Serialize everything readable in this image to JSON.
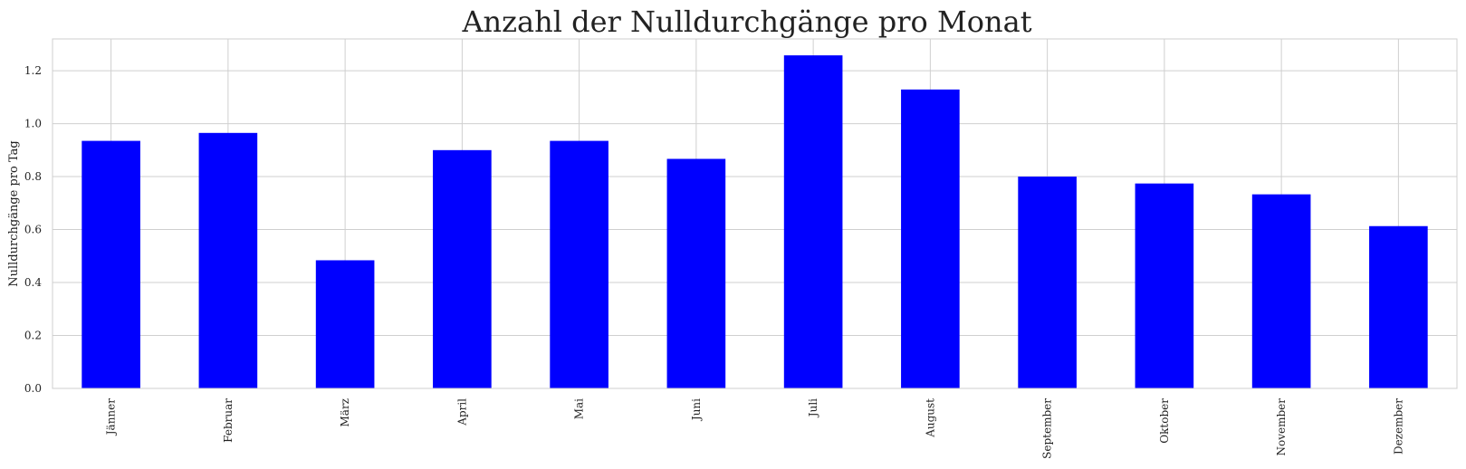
{
  "chart_data": {
    "type": "bar",
    "title": "Anzahl der Nulldurchgänge pro Monat",
    "xlabel": "",
    "ylabel": "Nulldurchgänge pro Tag",
    "categories": [
      "Jänner",
      "Februar",
      "März",
      "April",
      "Mai",
      "Juni",
      "Juli",
      "August",
      "September",
      "Oktober",
      "November",
      "Dezember"
    ],
    "values": [
      0.935,
      0.965,
      0.484,
      0.9,
      0.935,
      0.867,
      1.258,
      1.129,
      0.8,
      0.774,
      0.733,
      0.613
    ],
    "ylim": [
      0,
      1.32
    ],
    "yticks": [
      "0.0",
      "0.2",
      "0.4",
      "0.6",
      "0.8",
      "1.0",
      "1.2"
    ],
    "grid": true,
    "bar_color": "#0000ff",
    "grid_color": "#cfcfcf"
  }
}
